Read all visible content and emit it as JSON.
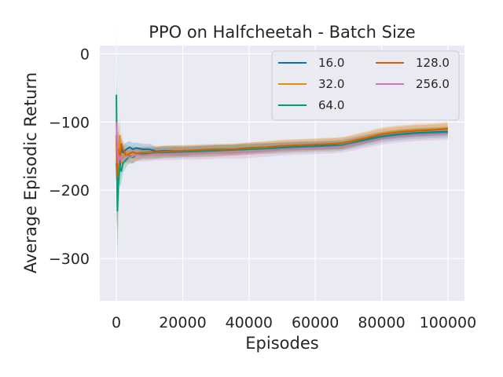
{
  "chart_data": {
    "type": "line",
    "title": "PPO on Halfcheetah - Batch Size",
    "xlabel": "Episodes",
    "ylabel": "Average Episodic Return",
    "xlim": [
      -5000,
      105000
    ],
    "ylim": [
      -362,
      12
    ],
    "xticks": [
      0,
      20000,
      40000,
      60000,
      80000,
      100000
    ],
    "xtick_labels": [
      "0",
      "20000",
      "40000",
      "60000",
      "80000",
      "100000"
    ],
    "yticks": [
      0,
      -100,
      -200,
      -300
    ],
    "ytick_labels": [
      "0",
      "−100",
      "−200",
      "−300"
    ],
    "grid": true,
    "legend_location": "top-right",
    "legend_columns": 2,
    "series": [
      {
        "name": "16.0",
        "color": "#0173b2",
        "x": [
          0,
          300,
          600,
          1000,
          1500,
          2000,
          3000,
          4000,
          5000,
          6000,
          8000,
          10000,
          12000,
          15000,
          20000,
          25000,
          30000,
          35000,
          40000,
          45000,
          50000,
          55000,
          60000,
          65000,
          68000,
          70000,
          75000,
          80000,
          85000,
          90000,
          95000,
          100000
        ],
        "y": [
          -160,
          -200,
          -150,
          -170,
          -138,
          -145,
          -140,
          -137,
          -140,
          -138,
          -140,
          -140,
          -143,
          -142,
          -143,
          -141,
          -140,
          -140,
          -138,
          -137,
          -136,
          -135,
          -135,
          -134,
          -134,
          -132,
          -126,
          -121,
          -118,
          -116,
          -115,
          -114
        ],
        "band": [
          80,
          60,
          40,
          25,
          15,
          12,
          10,
          9,
          9,
          8,
          8,
          8,
          7,
          7,
          7,
          6,
          6,
          6,
          6,
          6,
          6,
          6,
          6,
          6,
          6,
          6,
          6,
          6,
          6,
          6,
          6,
          6
        ]
      },
      {
        "name": "32.0",
        "color": "#de8f05",
        "x": [
          0,
          300,
          600,
          1000,
          1500,
          2000,
          3000,
          4000,
          5000,
          6000,
          8000,
          10000,
          12000,
          15000,
          20000,
          25000,
          30000,
          35000,
          40000,
          45000,
          50000,
          55000,
          60000,
          65000,
          68000,
          70000,
          75000,
          80000,
          85000,
          90000,
          95000,
          100000
        ],
        "y": [
          -130,
          -210,
          -170,
          -120,
          -160,
          -150,
          -145,
          -148,
          -150,
          -147,
          -145,
          -145,
          -145,
          -143,
          -143,
          -143,
          -142,
          -141,
          -139,
          -137,
          -135,
          -134,
          -133,
          -132,
          -131,
          -129,
          -123,
          -117,
          -114,
          -112,
          -111,
          -109
        ],
        "band": [
          90,
          70,
          45,
          30,
          18,
          14,
          12,
          11,
          10,
          10,
          9,
          9,
          9,
          9,
          9,
          9,
          9,
          9,
          9,
          9,
          9,
          9,
          9,
          9,
          9,
          9,
          9,
          9,
          9,
          9,
          9,
          9
        ]
      },
      {
        "name": "64.0",
        "color": "#029e73",
        "x": [
          0,
          300,
          600,
          1000,
          1500,
          2000,
          3000,
          4000,
          5000,
          6000,
          8000,
          10000,
          12000,
          15000,
          20000,
          25000,
          30000,
          35000,
          40000,
          45000,
          50000,
          55000,
          60000,
          65000,
          68000,
          70000,
          75000,
          80000,
          85000,
          90000,
          95000,
          100000
        ],
        "y": [
          -60,
          -230,
          -190,
          -165,
          -172,
          -160,
          -155,
          -150,
          -152,
          -148,
          -147,
          -147,
          -146,
          -145,
          -144,
          -143,
          -142,
          -141,
          -140,
          -139,
          -138,
          -137,
          -136,
          -135,
          -134,
          -132,
          -127,
          -122,
          -119,
          -117,
          -116,
          -115
        ],
        "band": [
          100,
          80,
          50,
          30,
          18,
          14,
          11,
          10,
          9,
          9,
          8,
          8,
          8,
          8,
          8,
          8,
          8,
          8,
          8,
          8,
          8,
          8,
          8,
          8,
          8,
          8,
          8,
          8,
          8,
          8,
          8,
          8
        ]
      },
      {
        "name": "128.0",
        "color": "#d55e00",
        "x": [
          0,
          300,
          600,
          1000,
          1500,
          2000,
          3000,
          4000,
          5000,
          6000,
          8000,
          10000,
          12000,
          15000,
          20000,
          25000,
          30000,
          35000,
          40000,
          45000,
          50000,
          55000,
          60000,
          65000,
          68000,
          70000,
          75000,
          80000,
          85000,
          90000,
          95000,
          100000
        ],
        "y": [
          -120,
          -180,
          -140,
          -155,
          -132,
          -140,
          -150,
          -146,
          -144,
          -146,
          -145,
          -144,
          -144,
          -143,
          -142,
          -141,
          -140,
          -140,
          -138,
          -137,
          -135,
          -134,
          -133,
          -132,
          -131,
          -129,
          -124,
          -118,
          -115,
          -113,
          -112,
          -110
        ],
        "band": [
          70,
          60,
          40,
          25,
          15,
          12,
          10,
          9,
          9,
          8,
          8,
          8,
          8,
          8,
          8,
          8,
          8,
          8,
          8,
          8,
          8,
          8,
          8,
          8,
          8,
          8,
          8,
          8,
          8,
          8,
          8,
          8
        ]
      },
      {
        "name": "256.0",
        "color": "#cc78bc",
        "x": [
          0,
          300,
          600,
          1000,
          1500,
          2000,
          3000,
          4000,
          5000,
          6000,
          8000,
          10000,
          12000,
          15000,
          20000,
          25000,
          30000,
          35000,
          40000,
          45000,
          50000,
          55000,
          60000,
          65000,
          68000,
          70000,
          75000,
          80000,
          85000,
          90000,
          95000,
          100000
        ],
        "y": [
          -100,
          -140,
          -160,
          -150,
          -155,
          -152,
          -150,
          -152,
          -150,
          -148,
          -149,
          -148,
          -147,
          -147,
          -146,
          -146,
          -145,
          -145,
          -144,
          -142,
          -140,
          -139,
          -138,
          -137,
          -136,
          -134,
          -129,
          -124,
          -121,
          -119,
          -118,
          -117
        ],
        "band": [
          60,
          50,
          35,
          22,
          15,
          12,
          10,
          10,
          10,
          10,
          9,
          9,
          9,
          9,
          9,
          9,
          9,
          9,
          9,
          9,
          9,
          9,
          9,
          9,
          9,
          9,
          9,
          9,
          9,
          9,
          9,
          9
        ]
      }
    ]
  }
}
